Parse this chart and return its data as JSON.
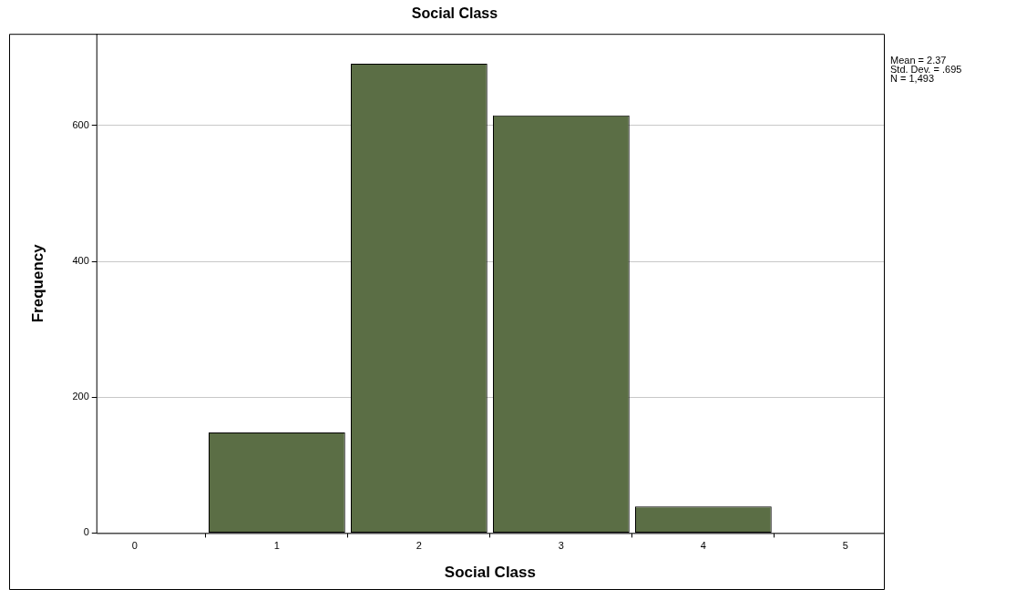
{
  "chart_data": {
    "type": "histogram",
    "title": "Social Class",
    "xlabel": "Social Class",
    "ylabel": "Frequency",
    "bins": [
      0.5,
      1.5,
      2.5,
      3.5,
      4.5
    ],
    "values": [
      148,
      691,
      615,
      39
    ],
    "color": "#5b6e45",
    "xlim": [
      -0.27,
      5.27
    ],
    "xticks": [
      0,
      1,
      2,
      3,
      4,
      5
    ],
    "ylim": [
      0,
      735
    ],
    "yticks": [
      0,
      200,
      400,
      600
    ],
    "grid": "y",
    "legend": false,
    "annotations": [
      "Mean = 2.37",
      "Std. Dev. = .695",
      "N = 1,493"
    ]
  }
}
